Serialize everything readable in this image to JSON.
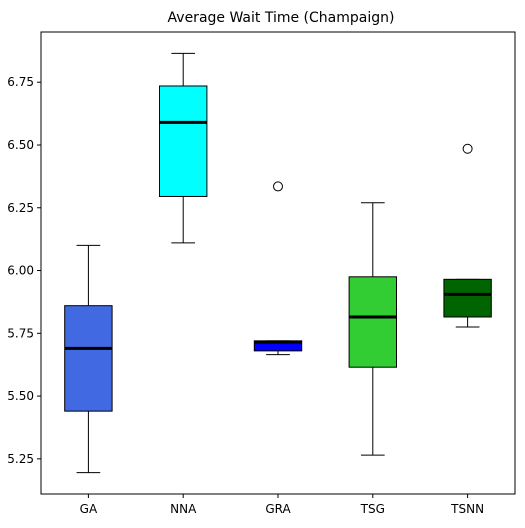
{
  "chart_data": {
    "type": "box",
    "title": "Average Wait Time (Champaign)",
    "xlabel": "",
    "ylabel": "",
    "ylim": [
      5.11,
      6.95
    ],
    "yticks": [
      5.25,
      5.5,
      5.75,
      6.0,
      6.25,
      6.5,
      6.75
    ],
    "ytick_labels": [
      "5.25",
      "5.50",
      "5.75",
      "6.00",
      "6.25",
      "6.50",
      "6.75"
    ],
    "grid": false,
    "categories": [
      "GA",
      "NNA",
      "GRA",
      "TSG",
      "TSNN"
    ],
    "boxes": [
      {
        "label": "GA",
        "color": "#4169e1",
        "whisker_low": 5.195,
        "q1": 5.44,
        "median": 5.69,
        "q3": 5.86,
        "whisker_high": 6.1,
        "outliers": []
      },
      {
        "label": "NNA",
        "color": "#00ffff",
        "whisker_low": 6.11,
        "q1": 6.295,
        "median": 6.59,
        "q3": 6.735,
        "whisker_high": 6.865,
        "outliers": []
      },
      {
        "label": "GRA",
        "color": "#0000ff",
        "whisker_low": 5.665,
        "q1": 5.68,
        "median": 5.715,
        "q3": 5.72,
        "whisker_high": 5.72,
        "outliers": [
          6.335
        ]
      },
      {
        "label": "TSG",
        "color": "#32cd32",
        "whisker_low": 5.265,
        "q1": 5.615,
        "median": 5.815,
        "q3": 5.975,
        "whisker_high": 6.27,
        "outliers": []
      },
      {
        "label": "TSNN",
        "color": "#006400",
        "whisker_low": 5.775,
        "q1": 5.815,
        "median": 5.905,
        "q3": 5.965,
        "whisker_high": 5.965,
        "outliers": [
          6.485
        ]
      }
    ]
  }
}
